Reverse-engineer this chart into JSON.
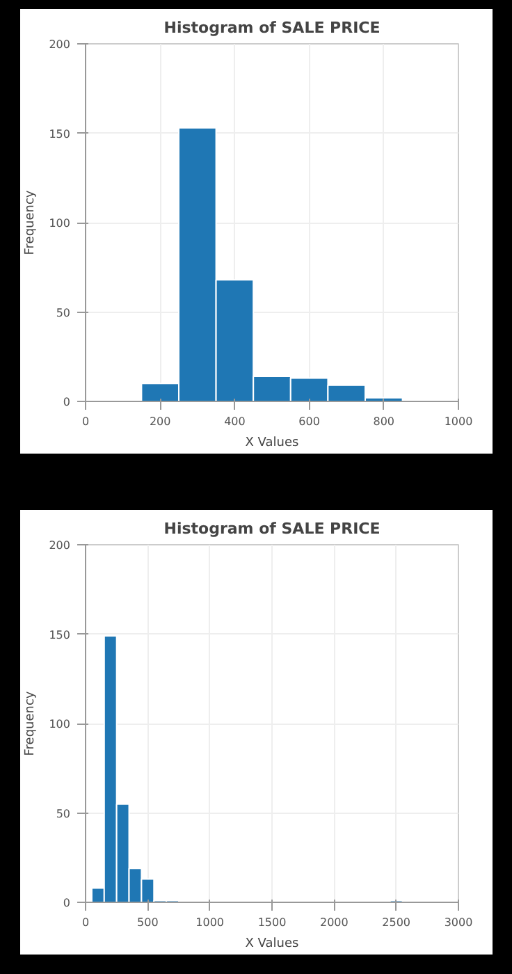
{
  "chart_data": [
    {
      "type": "histogram",
      "title": "Histogram of SALE PRICE",
      "xlabel": "X Values",
      "ylabel": "Frequency",
      "bins": [
        150,
        250,
        350,
        450,
        550,
        650,
        750,
        850
      ],
      "values": [
        10,
        153,
        68,
        14,
        13,
        9,
        2
      ],
      "color": "#1f77b4",
      "xlim": [
        0,
        1000
      ],
      "xticks": [
        0,
        200,
        400,
        600,
        800,
        1000
      ],
      "ylim": [
        0,
        200
      ],
      "yticks": [
        0,
        50,
        100,
        150,
        200
      ],
      "grid": true
    },
    {
      "type": "histogram",
      "title": "Histogram of SALE PRICE",
      "xlabel": "X Values",
      "ylabel": "Frequency",
      "bins": [
        50,
        150,
        250,
        350,
        450,
        550,
        650,
        750,
        850,
        950,
        1050,
        1150,
        1250,
        1350,
        1450,
        1550,
        1650,
        1750,
        1850,
        1950,
        2050,
        2150,
        2250,
        2350,
        2450,
        2550
      ],
      "values": [
        8,
        149,
        55,
        19,
        13,
        1,
        1,
        0,
        0,
        0,
        0,
        0,
        0,
        0,
        0,
        0,
        0,
        0,
        0,
        0,
        0,
        0,
        0,
        0,
        1
      ],
      "color": "#1f77b4",
      "xlim": [
        0,
        3000
      ],
      "xticks": [
        0,
        500,
        1000,
        1500,
        2000,
        2500,
        3000
      ],
      "ylim": [
        0,
        200
      ],
      "yticks": [
        0,
        50,
        100,
        150,
        200
      ],
      "grid": true
    }
  ]
}
